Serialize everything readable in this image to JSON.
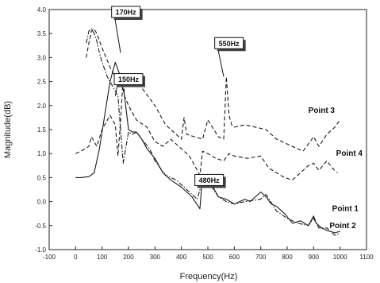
{
  "chart_data": {
    "type": "line",
    "xlabel": "Frequency(Hz)",
    "ylabel": "Magnitude(dB)",
    "xlim": [
      -100,
      1100
    ],
    "ylim": [
      -1.0,
      4.0
    ],
    "xticks": [
      -100,
      0,
      100,
      200,
      300,
      400,
      500,
      600,
      700,
      800,
      900,
      1000,
      1100
    ],
    "yticks": [
      -1.0,
      -0.5,
      0.0,
      0.5,
      1.0,
      1.5,
      2.0,
      2.5,
      3.0,
      3.5,
      4.0
    ],
    "ytick_labels": [
      "-1.0",
      "-0.5",
      "0.0",
      "0.5",
      "1.0",
      "1.5",
      "2.0",
      "2.5",
      "3.0",
      "3.5",
      "4.0"
    ],
    "grid": false,
    "series": [
      {
        "name": "Point 1",
        "dash": "solid",
        "x": [
          0,
          20,
          50,
          70,
          90,
          110,
          130,
          150,
          170,
          185,
          200,
          215,
          230,
          250,
          270,
          300,
          330,
          360,
          400,
          440,
          470,
          480,
          490,
          510,
          540,
          570,
          600,
          620,
          640,
          660,
          700,
          720,
          740,
          760,
          790,
          820,
          850,
          880,
          900,
          910,
          930,
          950,
          980,
          1000
        ],
        "y": [
          0.5,
          0.5,
          0.52,
          0.6,
          1.1,
          1.8,
          2.5,
          2.9,
          2.6,
          2.2,
          1.5,
          1.45,
          1.45,
          1.3,
          1.1,
          0.9,
          0.6,
          0.45,
          0.3,
          0.1,
          -0.15,
          0.55,
          0.5,
          0.4,
          0.1,
          0.05,
          -0.05,
          0.0,
          0.05,
          0.0,
          0.2,
          0.1,
          -0.05,
          -0.1,
          -0.25,
          -0.45,
          -0.4,
          -0.5,
          -0.3,
          -0.45,
          -0.55,
          -0.6,
          -0.65,
          -0.62
        ]
      },
      {
        "name": "Point 2",
        "dash": "dash-dot",
        "x": [
          40,
          50,
          60,
          70,
          80,
          90,
          100,
          120,
          140,
          160,
          170,
          180,
          200,
          215,
          230,
          250,
          280,
          300,
          340,
          380,
          420,
          460,
          480,
          490,
          510,
          540,
          570,
          600,
          640,
          700,
          720,
          760,
          800,
          840,
          880,
          900,
          920,
          950,
          980,
          1000
        ],
        "y": [
          3.3,
          3.55,
          3.6,
          3.5,
          3.35,
          3.1,
          2.9,
          2.6,
          2.4,
          2.2,
          1.5,
          0.8,
          1.45,
          1.4,
          1.45,
          1.3,
          1.1,
          0.85,
          0.55,
          0.45,
          0.25,
          0.05,
          0.45,
          0.4,
          0.35,
          0.1,
          0.0,
          -0.05,
          0.0,
          0.05,
          0.15,
          -0.2,
          -0.35,
          -0.45,
          -0.5,
          -0.35,
          -0.55,
          -0.55,
          -0.7,
          -0.65
        ]
      },
      {
        "name": "Point 3",
        "dash": "dash",
        "x": [
          40,
          50,
          60,
          70,
          80,
          100,
          130,
          160,
          175,
          185,
          200,
          230,
          260,
          300,
          340,
          380,
          400,
          410,
          420,
          450,
          480,
          500,
          540,
          560,
          570,
          580,
          590,
          600,
          640,
          680,
          720,
          760,
          800,
          840,
          860,
          880,
          900,
          920,
          950,
          980,
          1000
        ],
        "y": [
          3.0,
          3.3,
          3.55,
          3.6,
          3.5,
          3.2,
          2.8,
          2.5,
          2.4,
          2.6,
          2.6,
          2.5,
          2.3,
          2.0,
          1.6,
          1.4,
          1.3,
          1.75,
          1.4,
          1.35,
          1.3,
          1.7,
          1.35,
          1.3,
          2.6,
          1.8,
          1.6,
          1.55,
          1.6,
          1.55,
          1.5,
          1.3,
          1.2,
          1.1,
          1.05,
          1.2,
          1.35,
          1.15,
          1.4,
          1.55,
          1.7
        ]
      },
      {
        "name": "Point 4",
        "dash": "dash",
        "x": [
          0,
          20,
          50,
          60,
          70,
          80,
          100,
          130,
          150,
          160,
          170,
          180,
          185,
          200,
          230,
          270,
          300,
          330,
          360,
          400,
          430,
          470,
          480,
          500,
          530,
          560,
          580,
          600,
          650,
          700,
          730,
          760,
          790,
          820,
          850,
          880,
          900,
          920,
          950,
          970,
          990
        ],
        "y": [
          1.0,
          1.05,
          1.15,
          1.35,
          1.25,
          1.15,
          1.5,
          1.8,
          1.6,
          0.95,
          1.7,
          2.6,
          2.2,
          2.0,
          1.7,
          1.55,
          1.25,
          1.15,
          1.3,
          1.1,
          0.95,
          0.55,
          1.05,
          1.0,
          0.9,
          0.85,
          1.0,
          0.95,
          0.9,
          0.95,
          0.7,
          0.6,
          0.5,
          0.45,
          0.6,
          0.75,
          0.8,
          0.65,
          0.85,
          0.7,
          0.6
        ]
      }
    ],
    "series_labels": [
      {
        "text": "Point 3",
        "x": 930,
        "y": 1.85
      },
      {
        "text": "Point 4",
        "x": 1035,
        "y": 0.95
      },
      {
        "text": "Point 1",
        "x": 1020,
        "y": -0.2
      },
      {
        "text": "Point 2",
        "x": 1010,
        "y": -0.55
      }
    ],
    "annotations": [
      {
        "text": "170Hz",
        "box_x": 190,
        "box_y": 3.95,
        "target_x": 170,
        "target_y": 3.1
      },
      {
        "text": "150Hz",
        "box_x": 200,
        "box_y": 2.55,
        "target_x": 150,
        "target_y": 2.2
      },
      {
        "text": "550Hz",
        "box_x": 580,
        "box_y": 3.3,
        "target_x": 560,
        "target_y": 2.6
      },
      {
        "text": "480Hz",
        "box_x": 505,
        "box_y": 0.45,
        "target_x": 470,
        "target_y": 0.55
      }
    ]
  }
}
